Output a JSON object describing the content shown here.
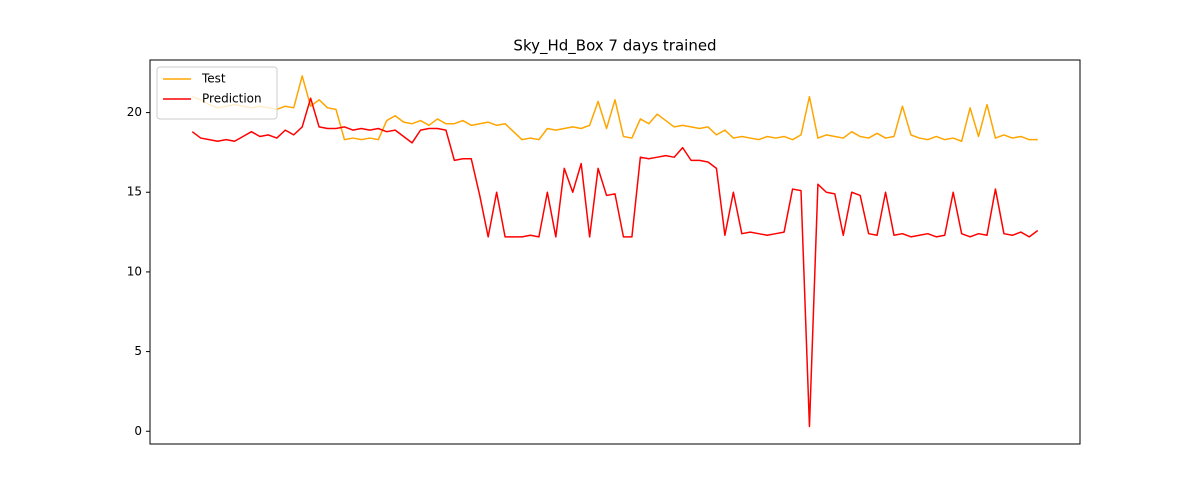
{
  "chart_data": {
    "type": "line",
    "title": "Sky_Hd_Box 7 days trained",
    "x": [
      0,
      1,
      2,
      3,
      4,
      5,
      6,
      7,
      8,
      9,
      10,
      11,
      12,
      13,
      14,
      15,
      16,
      17,
      18,
      19,
      20,
      21,
      22,
      23,
      24,
      25,
      26,
      27,
      28,
      29,
      30,
      31,
      32,
      33,
      34,
      35,
      36,
      37,
      38,
      39,
      40,
      41,
      42,
      43,
      44,
      45,
      46,
      47,
      48,
      49,
      50,
      51,
      52,
      53,
      54,
      55,
      56,
      57,
      58,
      59,
      60,
      61,
      62,
      63,
      64,
      65,
      66,
      67,
      68,
      69,
      70,
      71,
      72,
      73,
      74,
      75,
      76,
      77,
      78,
      79,
      80,
      81,
      82,
      83,
      84,
      85,
      86,
      87,
      88,
      89,
      90,
      91,
      92,
      93,
      94,
      95,
      96,
      97,
      98,
      99,
      100
    ],
    "series": [
      {
        "name": "Test",
        "color": "#ffa500",
        "values": [
          21,
          20.8,
          20.5,
          20.3,
          20.4,
          20.5,
          20.4,
          20.3,
          20.4,
          20.3,
          20.2,
          20.4,
          20.3,
          22.3,
          20.4,
          20.8,
          20.3,
          20.2,
          18.3,
          18.4,
          18.3,
          18.4,
          18.3,
          19.5,
          19.8,
          19.4,
          19.3,
          19.5,
          19.2,
          19.6,
          19.3,
          19.3,
          19.5,
          19.2,
          19.3,
          19.4,
          19.2,
          19.3,
          18.8,
          18.3,
          18.4,
          18.3,
          19,
          18.9,
          19,
          19.1,
          19,
          19.2,
          20.7,
          19,
          20.8,
          18.5,
          18.4,
          19.6,
          19.3,
          19.9,
          19.5,
          19.1,
          19.2,
          19.1,
          19,
          19.1,
          18.6,
          18.9,
          18.4,
          18.5,
          18.4,
          18.3,
          18.5,
          18.4,
          18.5,
          18.3,
          18.6,
          21,
          18.4,
          18.6,
          18.5,
          18.4,
          18.8,
          18.5,
          18.4,
          18.7,
          18.4,
          18.5,
          20.4,
          18.6,
          18.4,
          18.3,
          18.5,
          18.3,
          18.4,
          18.2,
          20.3,
          18.5,
          20.5,
          18.4,
          18.6,
          18.4,
          18.5,
          18.3,
          18.3
        ]
      },
      {
        "name": "Prediction",
        "color": "#ff0000",
        "values": [
          18.8,
          18.4,
          18.3,
          18.2,
          18.3,
          18.2,
          18.5,
          18.8,
          18.5,
          18.6,
          18.4,
          18.9,
          18.6,
          19.1,
          20.9,
          19.1,
          19,
          19,
          19.1,
          18.9,
          19,
          18.9,
          19,
          18.8,
          18.9,
          18.5,
          18.1,
          18.9,
          19,
          19,
          18.9,
          17,
          17.1,
          17.1,
          14.8,
          12.2,
          15,
          12.2,
          12.2,
          12.2,
          12.3,
          12.2,
          15,
          12.2,
          16.5,
          15,
          16.8,
          12.2,
          16.5,
          14.8,
          14.9,
          12.2,
          12.2,
          17.2,
          17.1,
          17.2,
          17.3,
          17.2,
          17.8,
          17,
          17,
          16.9,
          16.5,
          12.3,
          15,
          12.4,
          12.5,
          12.4,
          12.3,
          12.4,
          12.5,
          15.2,
          15.1,
          0.3,
          15.5,
          15,
          14.9,
          12.3,
          15,
          14.8,
          12.4,
          12.3,
          15,
          12.3,
          12.4,
          12.2,
          12.3,
          12.4,
          12.2,
          12.3,
          15,
          12.4,
          12.2,
          12.4,
          12.3,
          15.2,
          12.4,
          12.3,
          12.5,
          12.2,
          12.6
        ]
      }
    ],
    "xlim": [
      -5,
      105
    ],
    "ylim": [
      -0.8,
      23.3
    ],
    "yticks": [
      0,
      5,
      10,
      15,
      20
    ],
    "grid": false,
    "legend": "upper-left"
  }
}
